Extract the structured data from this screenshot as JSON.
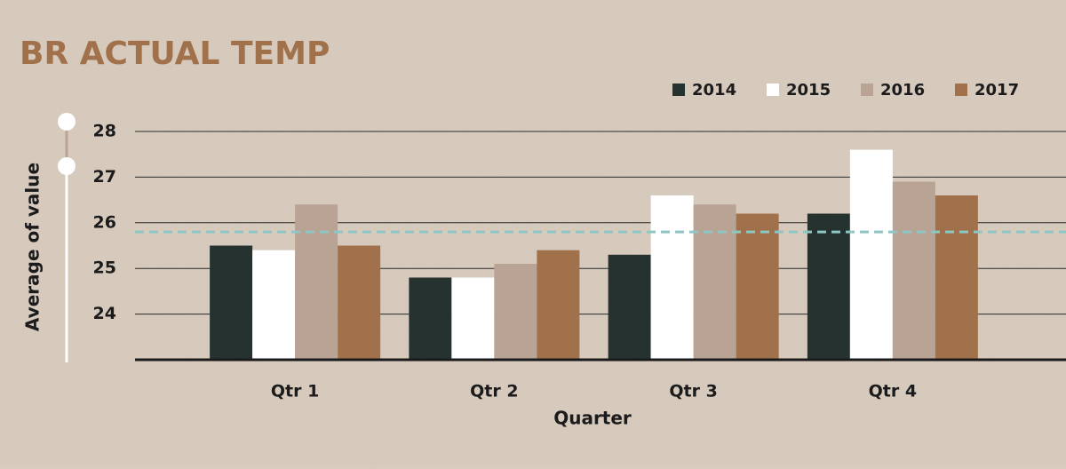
{
  "chart_data": {
    "type": "bar",
    "title": "BR ACTUAL TEMP",
    "x_label": "Quarter",
    "y_label": "Average of value",
    "categories": [
      "Qtr 1",
      "Qtr 2",
      "Qtr 3",
      "Qtr 4"
    ],
    "series": [
      {
        "name": "2014",
        "color": "#253230",
        "values": [
          25.5,
          24.8,
          25.3,
          26.2
        ]
      },
      {
        "name": "2015",
        "color": "#ffffff",
        "values": [
          25.4,
          24.8,
          26.6,
          27.6
        ]
      },
      {
        "name": "2016",
        "color": "#b8a394",
        "values": [
          26.4,
          25.1,
          26.4,
          26.9
        ]
      },
      {
        "name": "2017",
        "color": "#a0714b",
        "values": [
          25.5,
          25.4,
          26.2,
          26.6
        ]
      }
    ],
    "average_line": 25.8,
    "average_line_color": "#8cc7c4",
    "ylim": [
      23,
      28
    ],
    "yticks": [
      24,
      25,
      26,
      27,
      28
    ],
    "grid": true,
    "legend_position": "top-right"
  }
}
